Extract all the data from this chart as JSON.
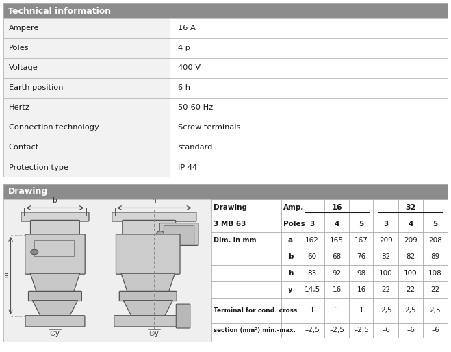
{
  "tech_title": "Technical information",
  "tech_rows": [
    [
      "Ampere",
      "16 A"
    ],
    [
      "Poles",
      "4 p"
    ],
    [
      "Voltage",
      "400 V"
    ],
    [
      "Earth position",
      "6 h"
    ],
    [
      "Hertz",
      "50-60 Hz"
    ],
    [
      "Connection technology",
      "Screw terminals"
    ],
    [
      "Contact",
      "standard"
    ],
    [
      "Protection type",
      "IP 44"
    ]
  ],
  "drawing_title": "Drawing",
  "draw_col_header1": "Drawing",
  "draw_col_header2": "3 MB 63",
  "draw_amp_label": "Amp.",
  "draw_poles_label": "Poles",
  "draw_amp16": "16",
  "draw_amp32": "32",
  "draw_poles": [
    "3",
    "4",
    "5",
    "3",
    "4",
    "5"
  ],
  "draw_dim_label": "Dim. in mm",
  "draw_rows": [
    [
      "a",
      "162",
      "165",
      "167",
      "209",
      "209",
      "208"
    ],
    [
      "b",
      "60",
      "68",
      "76",
      "82",
      "82",
      "89"
    ],
    [
      "h",
      "83",
      "92",
      "98",
      "100",
      "100",
      "108"
    ],
    [
      "y",
      "14,5",
      "16",
      "16",
      "22",
      "22",
      "22"
    ]
  ],
  "draw_terminal_label": "Terminal for cond. cross",
  "draw_terminal_vals": [
    "1",
    "1",
    "1",
    "2,5",
    "2,5",
    "2,5"
  ],
  "draw_section_label": "section (mm²) min.-max.",
  "draw_section_vals": [
    "–2,5",
    "–2,5",
    "–2,5",
    "–6",
    "–6",
    "–6"
  ],
  "header_bg": "#8c8c8c",
  "header_text_color": "#ffffff",
  "table_border_color": "#aaaaaa",
  "text_color": "#1a1a1a",
  "fig_bg": "#ffffff",
  "draw_bg": "#e8e8e8"
}
